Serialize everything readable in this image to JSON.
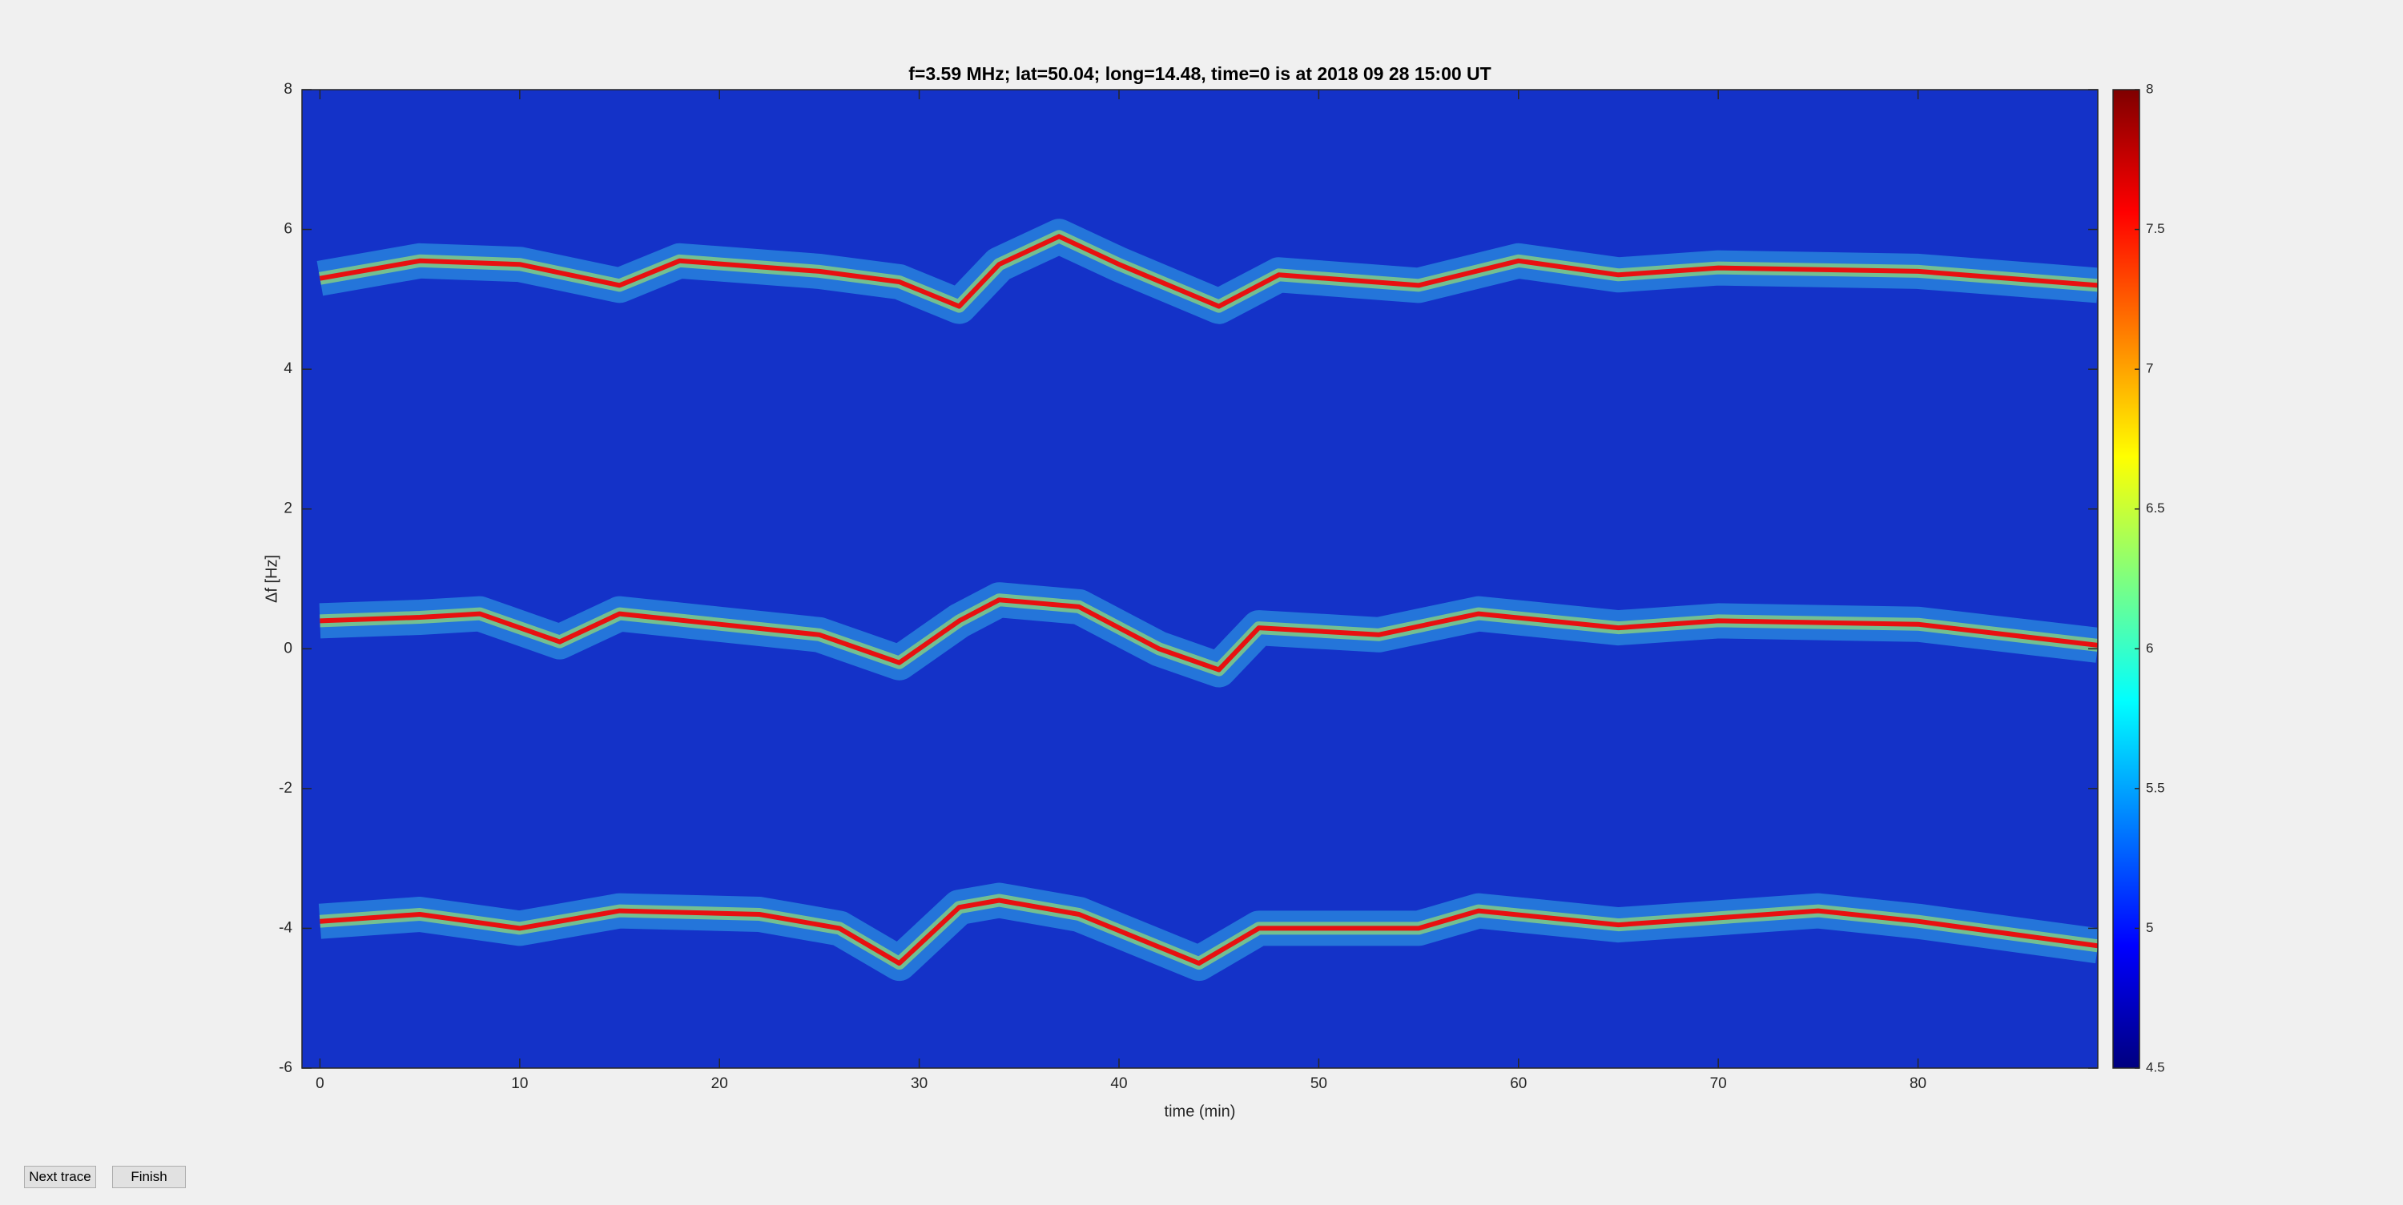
{
  "chart_data": {
    "type": "heatmap",
    "title": "f=3.59 MHz;  lat=50.04; long=14.48, time=0 is at 2018 09 28 15:00 UT",
    "xlabel": "time (min)",
    "ylabel": "Δf [Hz]",
    "xlim": [
      -0.9,
      89
    ],
    "xticks": [
      0,
      10,
      20,
      30,
      40,
      50,
      60,
      70,
      80
    ],
    "ylim": [
      -6,
      8
    ],
    "yticks": [
      -6,
      -4,
      -2,
      0,
      2,
      4,
      6,
      8
    ],
    "colormap": "jet",
    "background_color": "#1432c8",
    "clim": [
      4.5,
      8
    ],
    "cticks": [
      4.5,
      5,
      5.5,
      6,
      6.5,
      7,
      7.5,
      8
    ],
    "series": [
      {
        "color": "#e81010",
        "x": [
          0,
          5,
          10,
          15,
          18,
          25,
          29,
          32,
          34,
          37,
          40,
          45,
          48,
          55,
          60,
          65,
          70,
          80,
          89
        ],
        "values": [
          5.3,
          5.55,
          5.5,
          5.2,
          5.55,
          5.4,
          5.25,
          4.9,
          5.5,
          5.9,
          5.5,
          4.9,
          5.35,
          5.2,
          5.55,
          5.35,
          5.45,
          5.4,
          5.2
        ]
      },
      {
        "color": "#e81010",
        "x": [
          0,
          5,
          8,
          12,
          15,
          20,
          25,
          29,
          32,
          34,
          38,
          42,
          45,
          47,
          53,
          58,
          65,
          70,
          80,
          89
        ],
        "values": [
          0.4,
          0.45,
          0.5,
          0.1,
          0.5,
          0.35,
          0.2,
          -0.2,
          0.4,
          0.7,
          0.6,
          0.0,
          -0.3,
          0.3,
          0.2,
          0.5,
          0.3,
          0.4,
          0.35,
          0.05
        ]
      },
      {
        "color": "#e81010",
        "x": [
          0,
          5,
          10,
          15,
          22,
          26,
          29,
          32,
          34,
          38,
          44,
          47,
          55,
          58,
          65,
          75,
          80,
          89
        ],
        "values": [
          -3.9,
          -3.8,
          -4.0,
          -3.75,
          -3.8,
          -4.0,
          -4.5,
          -3.7,
          -3.6,
          -3.8,
          -4.5,
          -4.0,
          -4.0,
          -3.75,
          -3.95,
          -3.75,
          -3.9,
          -4.25
        ]
      }
    ]
  },
  "buttons": [
    "Next trace",
    "Finish"
  ]
}
